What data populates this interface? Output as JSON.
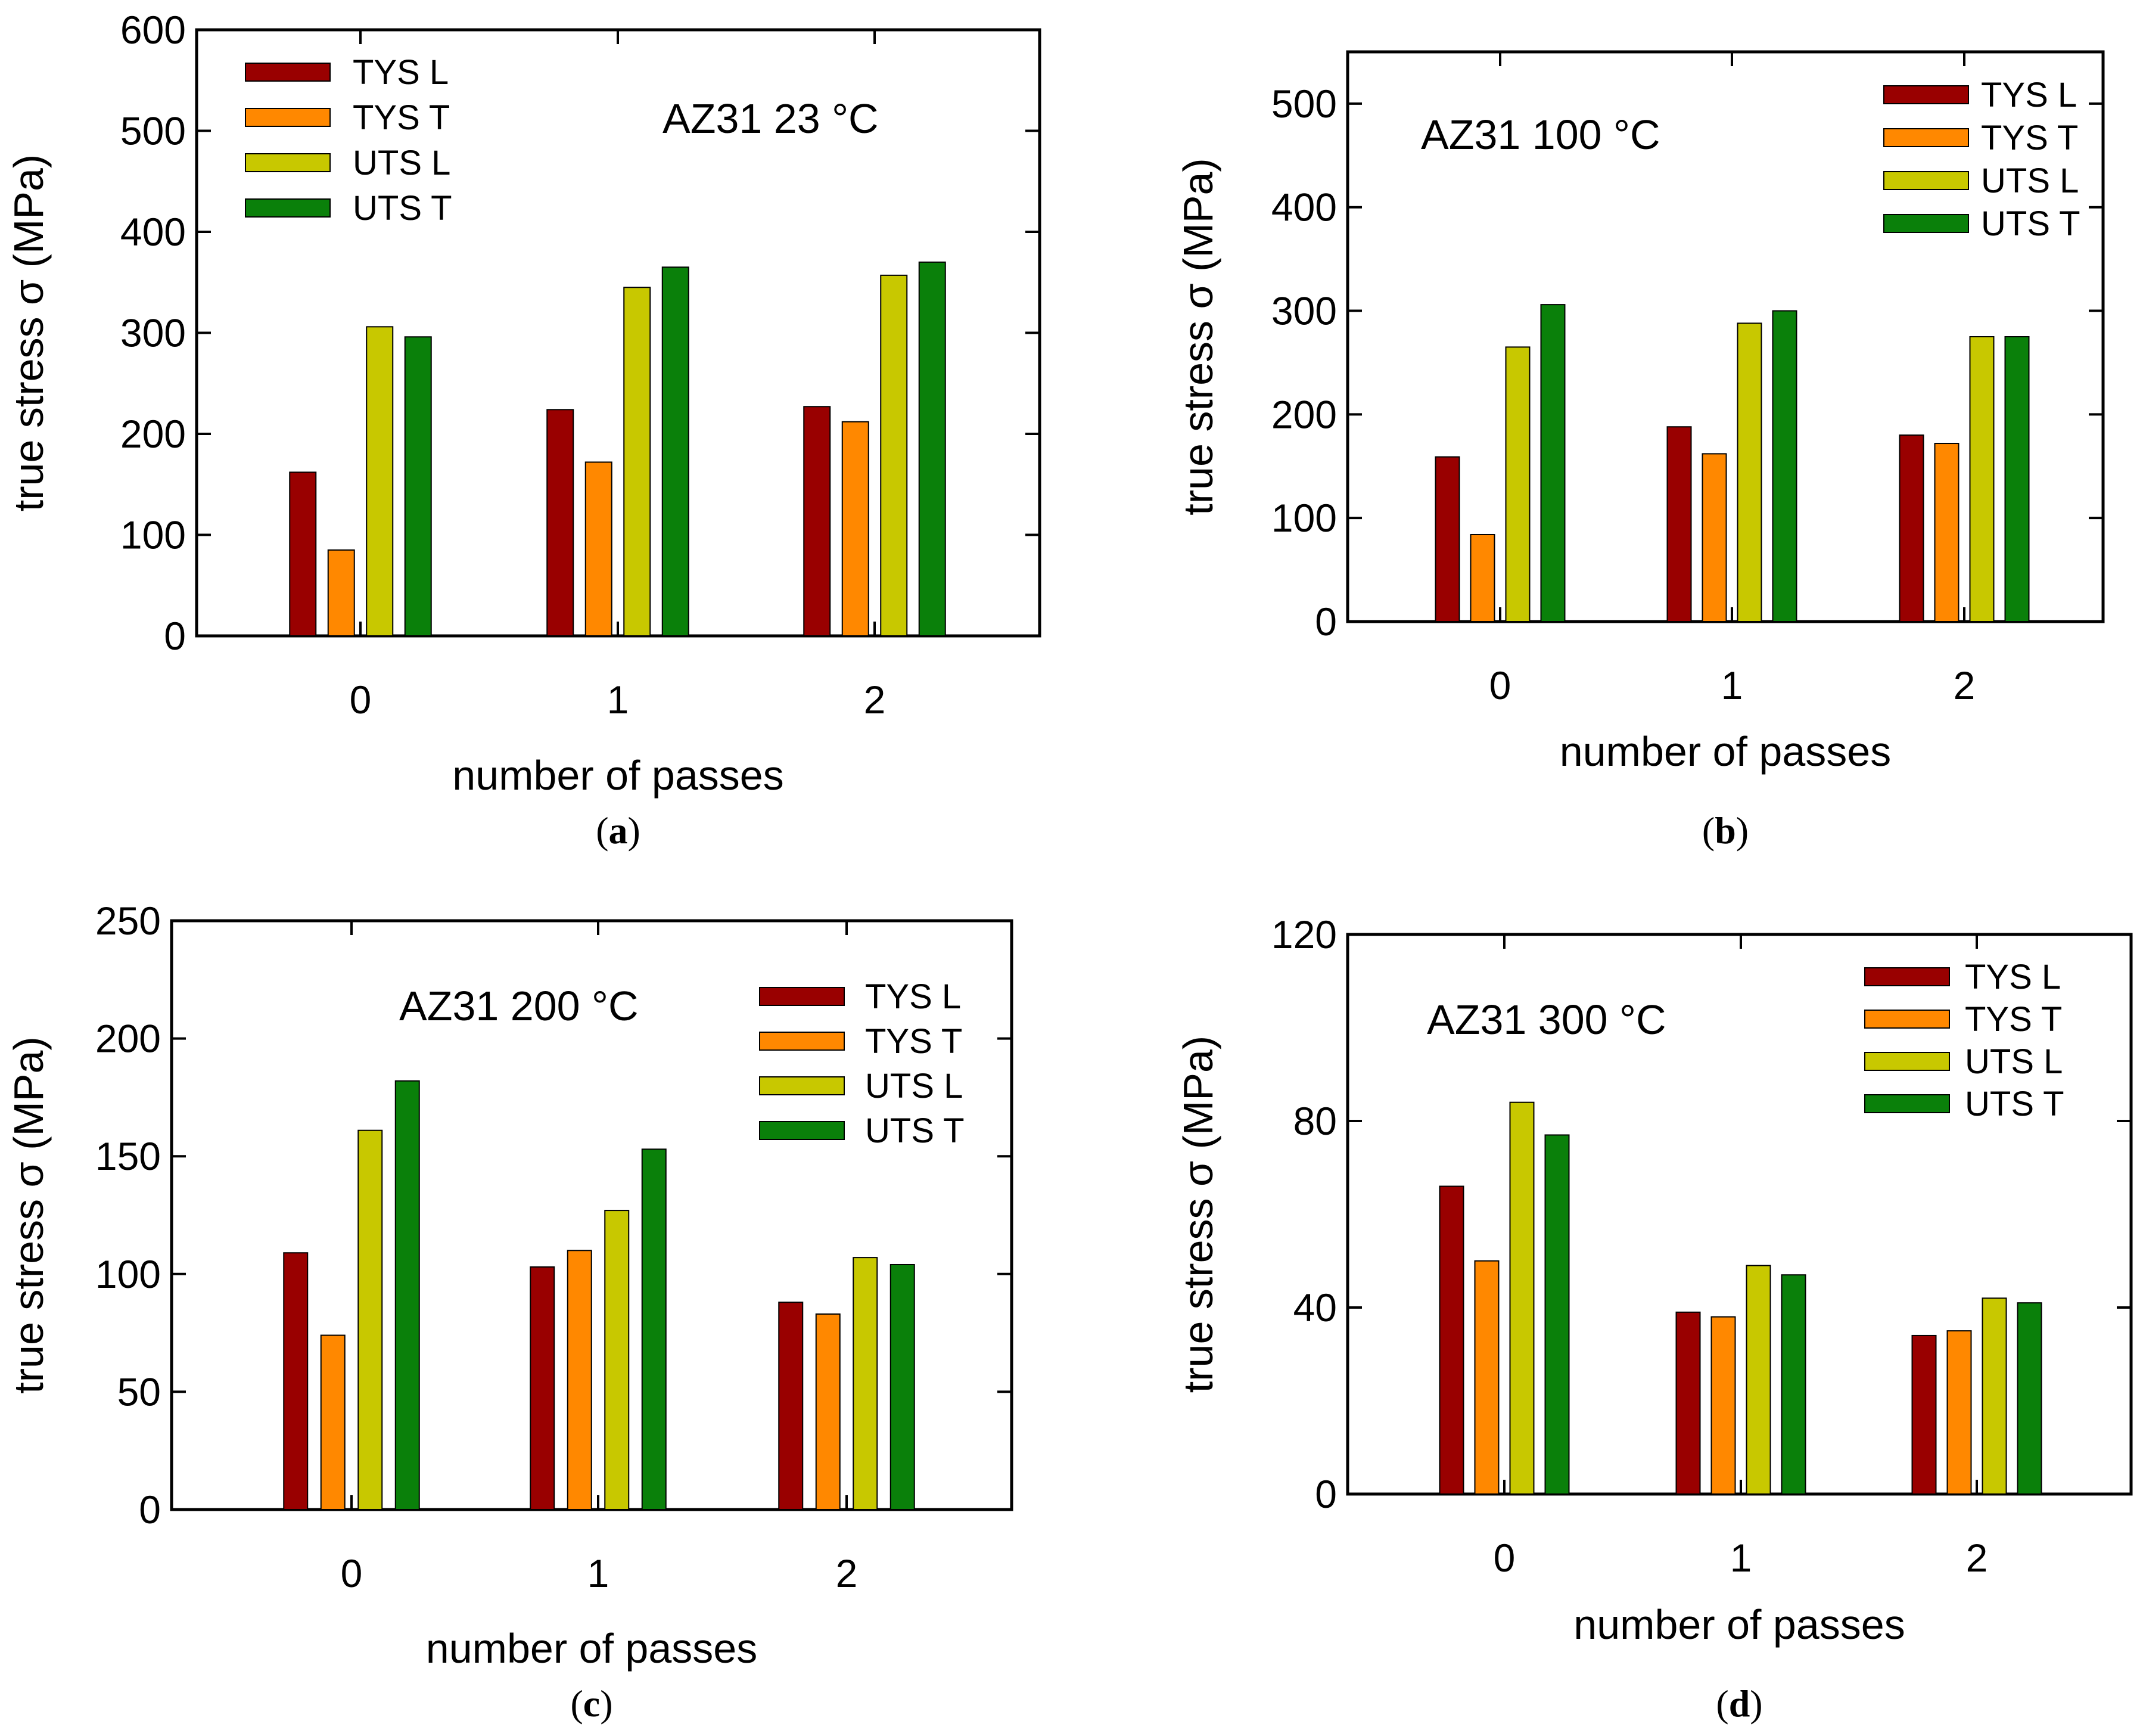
{
  "colors": {
    "TYS L": "#990000",
    "TYS T": "#ff8800",
    "UTS L": "#c8c800",
    "UTS T": "#0a800a"
  },
  "chart_data": [
    {
      "type": "bar",
      "panel": "(a)",
      "panel_letter": "a",
      "annotation": "AZ31 23 °C",
      "xlabel": "number of passes",
      "ylabel": "true stress σ (MPa)",
      "categories": [
        "0",
        "1",
        "2"
      ],
      "ylim": [
        0,
        600
      ],
      "yticks": [
        0,
        100,
        200,
        300,
        400,
        500,
        600
      ],
      "legend_position": "top-left",
      "series": [
        {
          "name": "TYS L",
          "values": [
            162,
            224,
            227
          ]
        },
        {
          "name": "TYS T",
          "values": [
            85,
            172,
            212
          ]
        },
        {
          "name": "UTS L",
          "values": [
            306,
            345,
            357
          ]
        },
        {
          "name": "UTS T",
          "values": [
            296,
            365,
            370
          ]
        }
      ]
    },
    {
      "type": "bar",
      "panel": "(b)",
      "panel_letter": "b",
      "annotation": "AZ31 100 °C",
      "xlabel": "number of passes",
      "ylabel": "true stress σ (MPa)",
      "categories": [
        "0",
        "1",
        "2"
      ],
      "ylim": [
        0,
        550
      ],
      "yticks": [
        0,
        100,
        200,
        300,
        400,
        500
      ],
      "legend_position": "top-right",
      "series": [
        {
          "name": "TYS L",
          "values": [
            159,
            188,
            180
          ]
        },
        {
          "name": "TYS T",
          "values": [
            84,
            162,
            172
          ]
        },
        {
          "name": "UTS L",
          "values": [
            265,
            288,
            275
          ]
        },
        {
          "name": "UTS T",
          "values": [
            306,
            300,
            275
          ]
        }
      ]
    },
    {
      "type": "bar",
      "panel": "(c)",
      "panel_letter": "c",
      "annotation": "AZ31 200 °C",
      "xlabel": "number of passes",
      "ylabel": "true stress σ (MPa)",
      "categories": [
        "0",
        "1",
        "2"
      ],
      "ylim": [
        0,
        250
      ],
      "yticks": [
        0,
        50,
        100,
        150,
        200,
        250
      ],
      "legend_position": "top-right",
      "series": [
        {
          "name": "TYS L",
          "values": [
            109,
            103,
            88
          ]
        },
        {
          "name": "TYS T",
          "values": [
            74,
            110,
            83
          ]
        },
        {
          "name": "UTS L",
          "values": [
            161,
            127,
            107
          ]
        },
        {
          "name": "UTS T",
          "values": [
            182,
            153,
            104
          ]
        }
      ]
    },
    {
      "type": "bar",
      "panel": "(d)",
      "panel_letter": "d",
      "annotation": "AZ31 300 °C",
      "xlabel": "number of passes",
      "ylabel": "true stress σ (MPa)",
      "categories": [
        "0",
        "1",
        "2"
      ],
      "ylim": [
        0,
        120
      ],
      "yticks": [
        0,
        40,
        80,
        120
      ],
      "legend_position": "top-right",
      "series": [
        {
          "name": "TYS L",
          "values": [
            66,
            39,
            34
          ]
        },
        {
          "name": "TYS T",
          "values": [
            50,
            38,
            35
          ]
        },
        {
          "name": "UTS L",
          "values": [
            84,
            49,
            42
          ]
        },
        {
          "name": "UTS T",
          "values": [
            77,
            47,
            41
          ]
        }
      ]
    }
  ]
}
